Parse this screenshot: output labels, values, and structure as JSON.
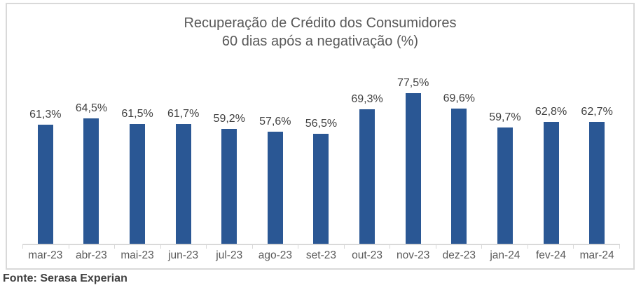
{
  "chart": {
    "title_line1": "Recuperação de Crédito dos Consumidores",
    "title_line2": "60 dias após a negativação (%)"
  },
  "chart_data": {
    "type": "bar",
    "title": "Recuperação de Crédito dos Consumidores 60 dias após a negativação (%)",
    "categories": [
      "mar-23",
      "abr-23",
      "mai-23",
      "jun-23",
      "jul-23",
      "ago-23",
      "set-23",
      "out-23",
      "nov-23",
      "dez-23",
      "jan-24",
      "fev-24",
      "mar-24"
    ],
    "values": [
      61.3,
      64.5,
      61.5,
      61.7,
      59.2,
      57.6,
      56.5,
      69.3,
      77.5,
      69.6,
      59.7,
      62.8,
      62.7
    ],
    "value_labels": [
      "61,3%",
      "64,5%",
      "61,5%",
      "61,7%",
      "59,2%",
      "57,6%",
      "56,5%",
      "69,3%",
      "77,5%",
      "69,6%",
      "59,7%",
      "62,8%",
      "62,7%"
    ],
    "xlabel": "",
    "ylabel": "",
    "ylim": [
      0,
      100
    ],
    "grid": false,
    "legend_position": "none",
    "data_labels_shown": true,
    "bar_color": "#2A5794",
    "axis_color": "#D9D9D9",
    "title_color": "#595959",
    "value_label_color": "#404040",
    "tick_label_color": "#595959"
  },
  "footer": {
    "source": "Fonte: Serasa Experian"
  }
}
